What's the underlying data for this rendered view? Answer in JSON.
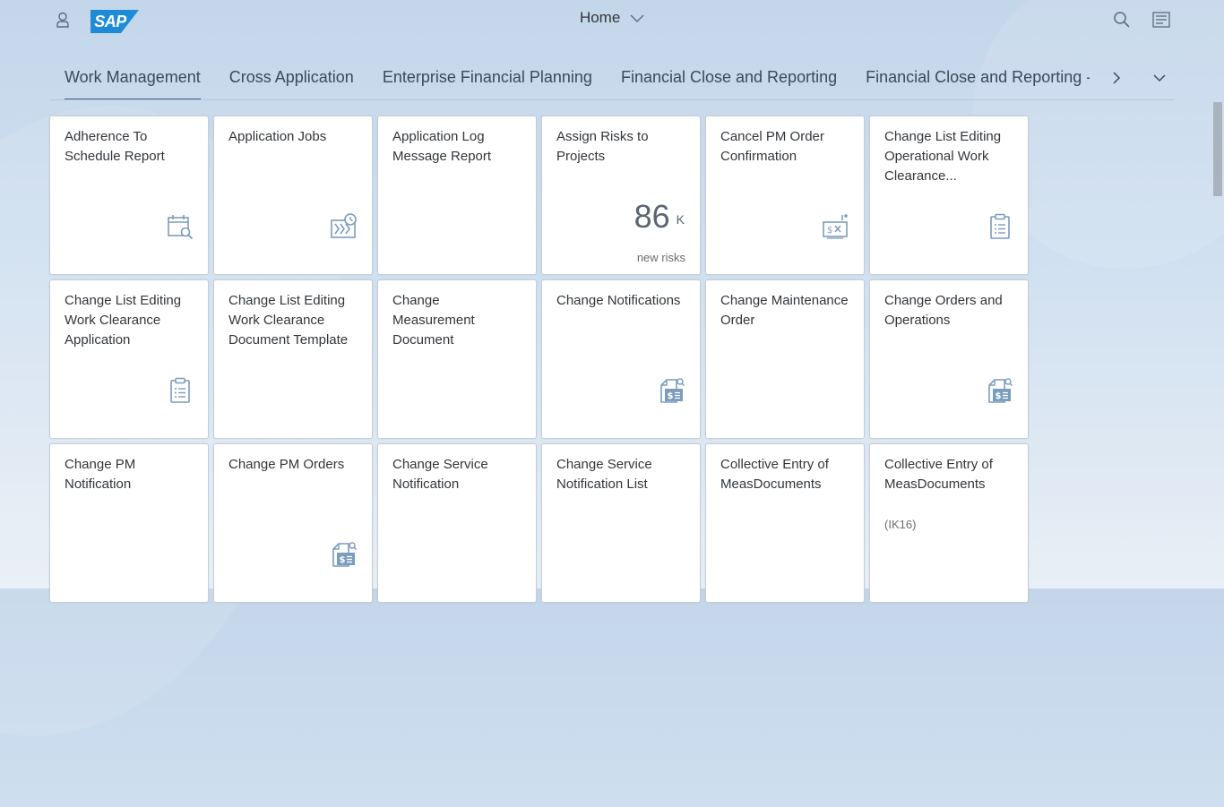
{
  "shell": {
    "title": "Home",
    "logo_text": "SAP",
    "brand_color": "#1e8bd8",
    "icons": [
      "person-icon",
      "search-icon",
      "menu-icon",
      "chevron-down-icon"
    ]
  },
  "tabs": {
    "active_index": 0,
    "items": [
      {
        "label": "Work Management"
      },
      {
        "label": "Cross Application"
      },
      {
        "label": "Enterprise Financial Planning"
      },
      {
        "label": "Financial Close and Reporting"
      },
      {
        "label": "Financial Close and Reporting - Global Accounting"
      }
    ],
    "icons": [
      "chevron-right-icon",
      "chevron-down-icon"
    ]
  },
  "tiles": [
    {
      "title": "Adherence To Schedule Report",
      "icon": "calendar-search-icon"
    },
    {
      "title": "Application Jobs",
      "icon": "job-schedule-icon"
    },
    {
      "title": "Application Log Message Report"
    },
    {
      "title": "Assign Risks to Projects",
      "kpi": {
        "value": "86",
        "scale": "K",
        "footer": "new risks"
      }
    },
    {
      "title": "Cancel PM Order Confirmation",
      "icon": "cancel-payment-icon"
    },
    {
      "title": "Change List Editing Operational Work Clearance...",
      "icon": "clipboard-list-icon"
    },
    {
      "title": "Change List Editing Work Clearance Application",
      "icon": "clipboard-list-icon"
    },
    {
      "title": "Change List Editing Work Clearance Document Template"
    },
    {
      "title": "Change Measurement Document"
    },
    {
      "title": "Change Notifications",
      "icon": "document-money-search-icon"
    },
    {
      "title": "Change Maintenance Order"
    },
    {
      "title": "Change Orders and Operations",
      "icon": "document-money-search-icon"
    },
    {
      "title": "Change PM Notification"
    },
    {
      "title": "Change PM Orders",
      "icon": "document-money-search-icon"
    },
    {
      "title": "Change Service Notification"
    },
    {
      "title": "Change Service Notification List"
    },
    {
      "title": "Collective Entry of MeasDocuments"
    },
    {
      "title": "Collective Entry of MeasDocuments",
      "subtitle": "(IK16)"
    }
  ],
  "colors": {
    "accent": "#346187",
    "icon": "#7a9cbd",
    "tile_bg": "#ffffff"
  }
}
